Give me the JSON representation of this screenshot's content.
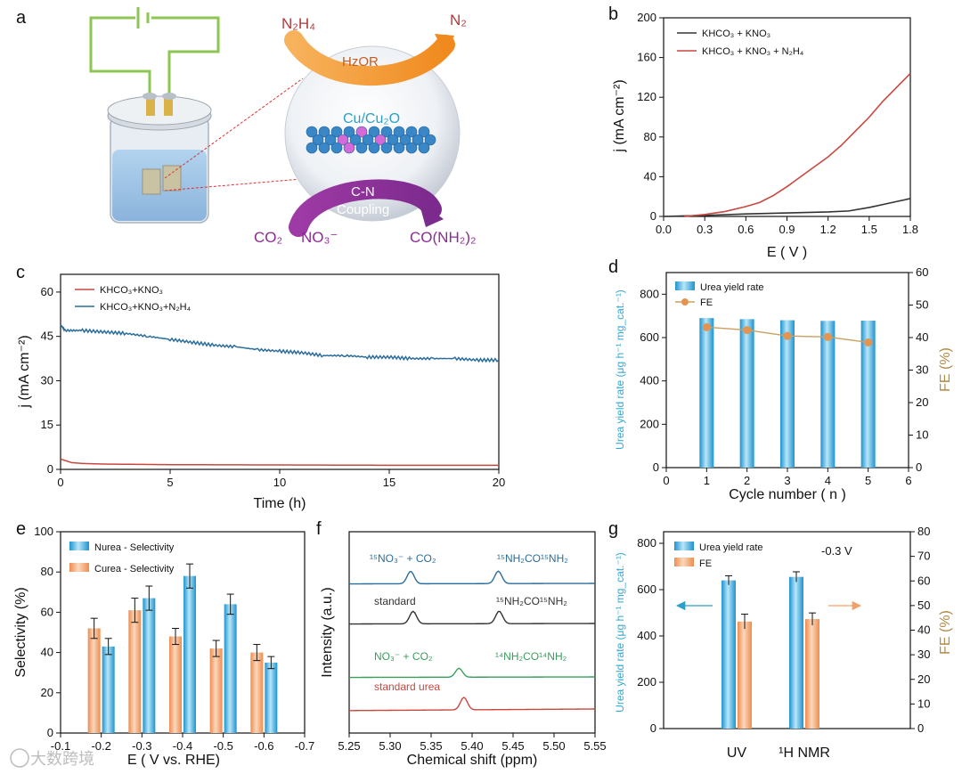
{
  "panels": {
    "a": {
      "label": "a",
      "reactant_top": "N₂H₄",
      "product_top": "N₂",
      "reaction_top": "HzOR",
      "catalyst": "Cu/Cu₂O",
      "reaction_bottom_1": "C-N",
      "reaction_bottom_2": "Coupling",
      "reactant_co2": "CO₂",
      "reactant_no3": "NO₃⁻",
      "product_bottom": "CO(NH₂)₂"
    },
    "b": {
      "label": "b"
    },
    "c": {
      "label": "c"
    },
    "d": {
      "label": "d"
    },
    "e": {
      "label": "e"
    },
    "f": {
      "label": "f"
    },
    "g": {
      "label": "g"
    }
  },
  "watermark": "大数跨境",
  "chart_data": [
    {
      "id": "b",
      "type": "line",
      "xlabel": "E ( V )",
      "ylabel": "j (mA cm⁻²)",
      "xlim": [
        0,
        1.8
      ],
      "ylim": [
        0,
        200
      ],
      "xticks": [
        "0.0",
        "0.3",
        "0.6",
        "0.9",
        "1.2",
        "1.5",
        "1.8"
      ],
      "yticks": [
        "0",
        "40",
        "80",
        "120",
        "160",
        "200"
      ],
      "legend_position": "top-left",
      "series": [
        {
          "name": "KHCO₃ + KNO₃",
          "color": "#333333",
          "x": [
            0,
            0.3,
            0.6,
            0.9,
            1.2,
            1.35,
            1.5,
            1.6,
            1.7,
            1.8
          ],
          "y": [
            0,
            1,
            2.5,
            3.5,
            4.5,
            5.5,
            9,
            12,
            15,
            18
          ]
        },
        {
          "name": "KHCO₃ + KNO₃ + N₂H₄",
          "color": "#c9473f",
          "x": [
            0.15,
            0.3,
            0.45,
            0.6,
            0.7,
            0.8,
            0.9,
            1.0,
            1.1,
            1.2,
            1.3,
            1.4,
            1.5,
            1.6,
            1.7,
            1.8
          ],
          "y": [
            0,
            2,
            5,
            10,
            14,
            21,
            30,
            40,
            50,
            60,
            72,
            86,
            100,
            116,
            130,
            144
          ]
        }
      ]
    },
    {
      "id": "c",
      "type": "line",
      "xlabel": "Time (h)",
      "ylabel": "j (mA cm⁻²)",
      "xlim": [
        0,
        20
      ],
      "ylim": [
        0,
        66
      ],
      "xticks": [
        "0",
        "5",
        "10",
        "15",
        "20"
      ],
      "yticks": [
        "0",
        "15",
        "30",
        "45",
        "60"
      ],
      "legend_position": "top-left",
      "series": [
        {
          "name": "KHCO₃+KNO₃",
          "color": "#c9473f",
          "x": [
            0,
            0.5,
            1,
            2,
            5,
            10,
            15,
            20
          ],
          "y": [
            3.5,
            2.3,
            2,
            1.8,
            1.6,
            1.5,
            1.4,
            1.4
          ]
        },
        {
          "name": "KHCO₃+KNO₃+N₂H₄",
          "color": "#2b6d9b",
          "x": [
            0,
            0.2,
            1,
            2,
            3,
            4,
            5,
            6,
            7,
            8,
            9,
            10,
            11,
            12,
            13,
            14,
            15,
            16,
            17,
            18,
            19,
            20
          ],
          "y": [
            49,
            47,
            47,
            46.5,
            46,
            45,
            44,
            43,
            42,
            41.5,
            40.5,
            40,
            39.5,
            38.5,
            38.5,
            38,
            38,
            37.5,
            37.5,
            37.5,
            37,
            37
          ]
        }
      ]
    },
    {
      "id": "d",
      "type": "bar",
      "xlabel": "Cycle number ( n )",
      "ylabel": "Urea yield rate (μg h⁻¹ mg_cat.⁻¹)",
      "ylabel_right": "FE (%)",
      "xlim": [
        0,
        6
      ],
      "ylim": [
        0,
        900
      ],
      "ylim_right": [
        0,
        60
      ],
      "xticks": [
        "0",
        "1",
        "2",
        "3",
        "4",
        "5",
        "6"
      ],
      "yticks": [
        "0",
        "200",
        "400",
        "600",
        "800"
      ],
      "yticks_right": [
        "0",
        "10",
        "20",
        "30",
        "40",
        "50",
        "60"
      ],
      "legend_position": "top-left",
      "categories": [
        1,
        2,
        3,
        4,
        5
      ],
      "series": [
        {
          "name": "Urea yield rate",
          "color": "#3fb3e3",
          "values": [
            690,
            685,
            680,
            677,
            678
          ]
        },
        {
          "name": "FE",
          "color": "#e5944f",
          "values": [
            43.2,
            42.3,
            40.5,
            40.2,
            38.5
          ]
        }
      ]
    },
    {
      "id": "e",
      "type": "bar",
      "xlabel": "E ( V vs. RHE)",
      "ylabel": "Selectivity (%)",
      "xlim": [
        -0.1,
        -0.7
      ],
      "ylim": [
        0,
        100
      ],
      "xticks": [
        "-0.1",
        "-0.2",
        "-0.3",
        "-0.4",
        "-0.5",
        "-0.6",
        "-0.7"
      ],
      "yticks": [
        "0",
        "20",
        "40",
        "60",
        "80",
        "100"
      ],
      "legend_position": "top-left",
      "categories": [
        -0.2,
        -0.3,
        -0.4,
        -0.5,
        -0.6
      ],
      "series": [
        {
          "name": "Nurea - Selectivity",
          "color": "#3fb3e3",
          "values": [
            43,
            67,
            78,
            64,
            35
          ],
          "errors": [
            4,
            6,
            6,
            5,
            3
          ]
        },
        {
          "name": "Curea - Selectivity",
          "color": "#f2a06b",
          "values": [
            52,
            61,
            48,
            42,
            40
          ],
          "errors": [
            5,
            6,
            4,
            4,
            4
          ]
        }
      ]
    },
    {
      "id": "f",
      "type": "line",
      "xlabel": "Chemical shift (ppm)",
      "ylabel": "Intensity (a.u.)",
      "xlim": [
        5.25,
        5.55
      ],
      "xticks": [
        "5.25",
        "5.30",
        "5.35",
        "5.40",
        "5.45",
        "5.50",
        "5.55"
      ],
      "annotations": [
        {
          "label": "¹⁵NO₃⁻ + CO₂",
          "color": "#2b6d9b"
        },
        {
          "label": "¹⁵NH₂CO¹⁵NH₂",
          "color": "#2b6d9b"
        },
        {
          "label": "standard",
          "color": "#333333"
        },
        {
          "label": "¹⁵NH₂CO¹⁵NH₂",
          "color": "#333333"
        },
        {
          "label": "NO₃⁻ + CO₂",
          "color": "#3a9d5c"
        },
        {
          "label": "¹⁴NH₂CO¹⁴NH₂",
          "color": "#3a9d5c"
        },
        {
          "label": "standard urea",
          "color": "#c9473f"
        }
      ],
      "series": [
        {
          "color": "#2b6d9b",
          "baseline": 0,
          "peaks": [
            5.325,
            5.432
          ]
        },
        {
          "color": "#333333",
          "baseline": 1,
          "peaks": [
            5.328,
            5.433
          ]
        },
        {
          "color": "#3a9d5c",
          "baseline": 2,
          "peaks": [
            5.384
          ]
        },
        {
          "color": "#c9473f",
          "baseline": 3,
          "peaks": [
            5.39
          ]
        }
      ]
    },
    {
      "id": "g",
      "type": "bar",
      "ylabel": "Urea yield rate (μg h⁻¹ mg_cat.⁻¹)",
      "ylabel_right": "FE (%)",
      "ylim": [
        0,
        850
      ],
      "ylim_right": [
        0,
        80
      ],
      "yticks": [
        "0",
        "200",
        "400",
        "600",
        "800"
      ],
      "yticks_right": [
        "0",
        "10",
        "20",
        "30",
        "40",
        "50",
        "60",
        "70",
        "80"
      ],
      "categories": [
        "UV",
        "¹H NMR"
      ],
      "annotation": "-0.3 V",
      "legend_position": "top-left",
      "series": [
        {
          "name": "Urea yield rate",
          "color": "#3fb3e3",
          "values": [
            640,
            655
          ],
          "errors": [
            20,
            22
          ]
        },
        {
          "name": "FE",
          "color": "#f2a06b",
          "values": [
            43.5,
            44.5
          ],
          "errors": [
            3,
            2.5
          ]
        }
      ]
    }
  ]
}
